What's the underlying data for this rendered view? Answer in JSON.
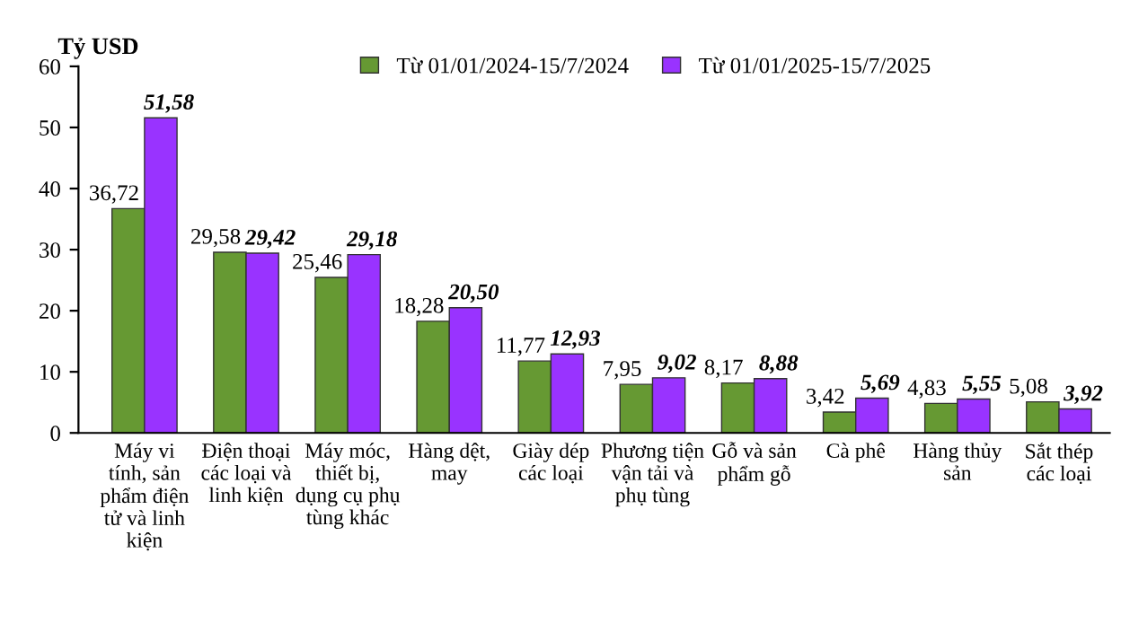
{
  "chart_data": {
    "type": "bar",
    "ylabel": "Tỷ USD",
    "categories": [
      "Máy vi tính, sản phẩm điện tử và linh kiện",
      "Điện thoại các loại và linh kiện",
      "Máy móc, thiết bị, dụng cụ phụ tùng khác",
      "Hàng dệt, may",
      "Giày dép các loại",
      "Phương tiện vận tải và phụ tùng",
      "Gỗ và sản phẩm gỗ",
      "Cà phê",
      "Hàng thủy sản",
      "Sắt thép các loại"
    ],
    "series": [
      {
        "name": "Từ 01/01/2024-15/7/2024",
        "color": "#669933",
        "values": [
          36.72,
          29.58,
          25.46,
          18.28,
          11.77,
          7.95,
          8.17,
          3.42,
          4.83,
          5.08
        ],
        "value_labels": [
          "36,72",
          "29,58",
          "25,46",
          "18,28",
          "11,77",
          "7,95",
          "8,17",
          "3,42",
          "4,83",
          "5,08"
        ]
      },
      {
        "name": "Từ 01/01/2025-15/7/2025",
        "color": "#9933ff",
        "values": [
          51.58,
          29.42,
          29.18,
          20.5,
          12.93,
          9.02,
          8.88,
          5.69,
          5.55,
          3.92
        ],
        "value_labels": [
          "51,58",
          "29,42",
          "29,18",
          "20,50",
          "12,93",
          "9,02",
          "8,88",
          "5,69",
          "5,55",
          "3,92"
        ]
      }
    ],
    "ylim": [
      0,
      60
    ],
    "yticks": [
      0,
      10,
      20,
      30,
      40,
      50,
      60
    ],
    "grid": false,
    "legend": "top"
  }
}
